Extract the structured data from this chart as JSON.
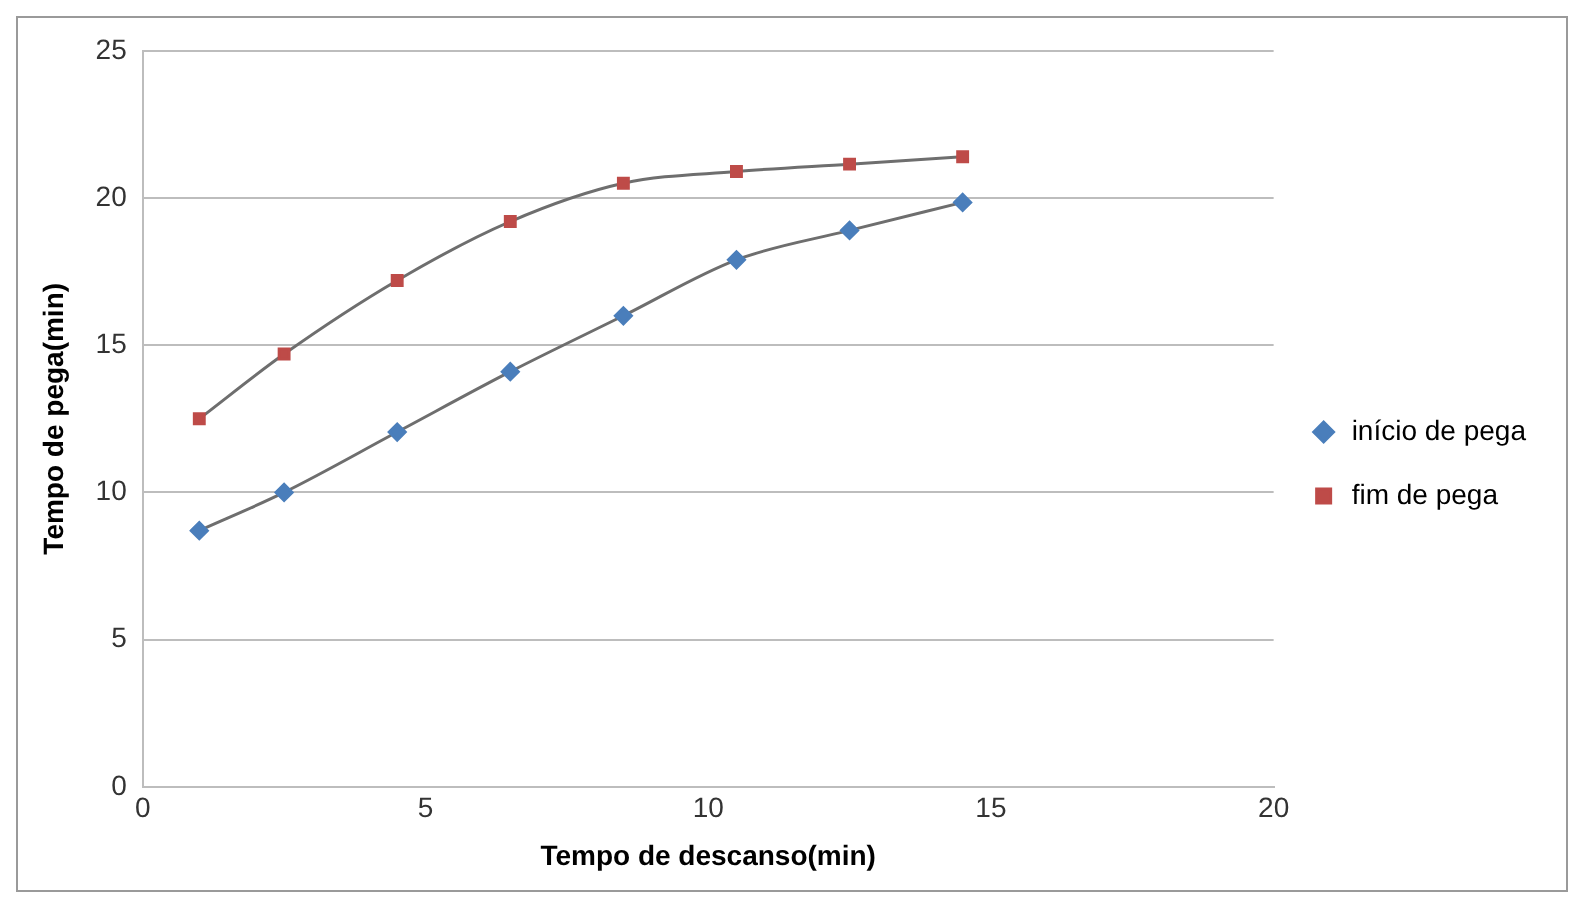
{
  "chart_data": {
    "type": "line",
    "xlabel": "Tempo de descanso(min)",
    "ylabel": "Tempo de pega(min)",
    "x": [
      1,
      2.5,
      4.5,
      6.5,
      8.5,
      10.5,
      12.5,
      14.5
    ],
    "series": [
      {
        "name": "início de pega",
        "color": "#4a7ebb",
        "marker": "diamond",
        "values": [
          8.7,
          10,
          12.05,
          14.1,
          16,
          17.9,
          18.9,
          19.85
        ]
      },
      {
        "name": "fim de pega",
        "color": "#be4b48",
        "marker": "square",
        "values": [
          12.5,
          14.7,
          17.2,
          19.2,
          20.5,
          20.9,
          21.15,
          21.4
        ]
      }
    ],
    "xlim": [
      0,
      20
    ],
    "xticks": [
      0,
      5,
      10,
      15,
      20
    ],
    "ylim": [
      0,
      25
    ],
    "yticks": [
      0,
      5,
      10,
      15,
      20,
      25
    ],
    "grid": "y",
    "legend": "right",
    "line_style": "solid"
  }
}
